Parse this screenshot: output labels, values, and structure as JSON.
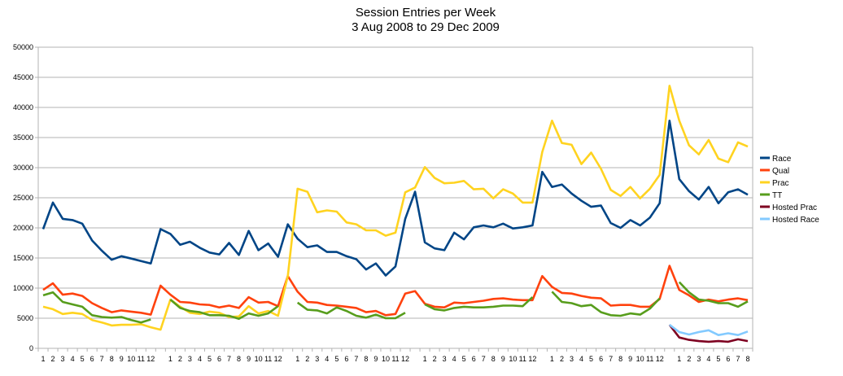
{
  "chart_data": {
    "type": "line",
    "title": "Session Entries per Week",
    "subtitle": "3 Aug 2008 to 29 Dec 2009",
    "xlabel": "",
    "ylabel": "",
    "ylim": [
      0,
      50000
    ],
    "ytick_step": 5000,
    "grid": true,
    "legend_position": "right",
    "categories": [
      "1",
      "2",
      "3",
      "4",
      "5",
      "6",
      "7",
      "8",
      "9",
      "10",
      "11",
      "12",
      "",
      "1",
      "2",
      "3",
      "4",
      "5",
      "6",
      "7",
      "8",
      "9",
      "10",
      "11",
      "12",
      "",
      "1",
      "2",
      "3",
      "4",
      "5",
      "6",
      "7",
      "8",
      "9",
      "10",
      "11",
      "12",
      "",
      "1",
      "2",
      "3",
      "4",
      "5",
      "6",
      "7",
      "8",
      "9",
      "10",
      "11",
      "12",
      "",
      "1",
      "2",
      "3",
      "4",
      "5",
      "6",
      "7",
      "8",
      "9",
      "10",
      "11",
      "12",
      "",
      "1",
      "2",
      "3",
      "4",
      "5",
      "6",
      "7",
      "8"
    ],
    "series": [
      {
        "name": "Race",
        "color": "#004586",
        "values": [
          19800,
          24200,
          21500,
          21300,
          20700,
          17900,
          16200,
          14700,
          15300,
          14900,
          14500,
          14100,
          19800,
          19000,
          17200,
          17700,
          16700,
          15900,
          15600,
          17500,
          15500,
          19500,
          16300,
          17400,
          15200,
          20600,
          18200,
          16800,
          17100,
          16000,
          16000,
          15300,
          14800,
          13100,
          14100,
          12100,
          13600,
          21500,
          26000,
          17600,
          16600,
          16300,
          19200,
          18100,
          20100,
          20400,
          20100,
          20700,
          19900,
          20100,
          20400,
          29300,
          26800,
          27200,
          25700,
          24500,
          23500,
          23700,
          20800,
          20000,
          21300,
          20400,
          21700,
          24100,
          37800,
          28100,
          26100,
          24700,
          26800,
          24100,
          25900,
          26400,
          25500
        ]
      },
      {
        "name": "Qual",
        "color": "#ff420e",
        "values": [
          9700,
          10800,
          8900,
          9100,
          8700,
          7500,
          6700,
          6000,
          6300,
          6100,
          5900,
          5600,
          10400,
          8900,
          7700,
          7600,
          7300,
          7200,
          6800,
          7100,
          6700,
          8500,
          7600,
          7700,
          7000,
          12000,
          9400,
          7700,
          7600,
          7200,
          7100,
          6900,
          6700,
          6000,
          6200,
          5500,
          5700,
          9100,
          9500,
          7400,
          6900,
          6800,
          7600,
          7500,
          7700,
          7900,
          8200,
          8300,
          8100,
          8000,
          8000,
          12000,
          10200,
          9200,
          9100,
          8700,
          8400,
          8300,
          7100,
          7200,
          7200,
          6900,
          6900,
          8200,
          13700,
          9700,
          8800,
          7700,
          8100,
          7800,
          8100,
          8300,
          8000
        ]
      },
      {
        "name": "Prac",
        "color": "#ffd320",
        "values": [
          6900,
          6500,
          5700,
          5900,
          5700,
          4700,
          4300,
          3800,
          3900,
          3900,
          4000,
          3500,
          3100,
          8100,
          6900,
          5900,
          5700,
          6100,
          5900,
          5200,
          5300,
          7000,
          5800,
          6200,
          5400,
          12000,
          26500,
          26000,
          22600,
          22900,
          22700,
          20900,
          20600,
          19600,
          19600,
          18700,
          19200,
          25900,
          26700,
          30100,
          28300,
          27400,
          27500,
          27800,
          26400,
          26500,
          24900,
          26400,
          25700,
          24200,
          24200,
          32600,
          37800,
          34100,
          33800,
          30600,
          32500,
          29800,
          26300,
          25300,
          26800,
          24900,
          26500,
          28800,
          43600,
          37800,
          33700,
          32200,
          34600,
          31500,
          30900,
          34200,
          33500
        ]
      },
      {
        "name": "TT",
        "color": "#579d1c",
        "values": [
          8800,
          9300,
          7700,
          7300,
          6900,
          5500,
          5200,
          5100,
          5200,
          4700,
          4300,
          4800,
          null,
          8100,
          6700,
          6200,
          6000,
          5500,
          5500,
          5400,
          4900,
          5800,
          5400,
          5800,
          7000,
          null,
          7600,
          6400,
          6300,
          5800,
          6800,
          6200,
          5400,
          5100,
          5600,
          5000,
          5000,
          5900,
          null,
          7300,
          6500,
          6300,
          6700,
          6900,
          6800,
          6800,
          6900,
          7100,
          7100,
          7000,
          8500,
          null,
          9400,
          7700,
          7500,
          7000,
          7200,
          6000,
          5500,
          5400,
          5800,
          5600,
          6600,
          8300,
          null,
          11000,
          9300,
          8100,
          7900,
          7500,
          7500,
          6900,
          7800
        ]
      },
      {
        "name": "Hosted Prac",
        "color": "#7e0021",
        "values": [
          null,
          null,
          null,
          null,
          null,
          null,
          null,
          null,
          null,
          null,
          null,
          null,
          null,
          null,
          null,
          null,
          null,
          null,
          null,
          null,
          null,
          null,
          null,
          null,
          null,
          null,
          null,
          null,
          null,
          null,
          null,
          null,
          null,
          null,
          null,
          null,
          null,
          null,
          null,
          null,
          null,
          null,
          null,
          null,
          null,
          null,
          null,
          null,
          null,
          null,
          null,
          null,
          null,
          null,
          null,
          null,
          null,
          null,
          null,
          null,
          null,
          null,
          null,
          null,
          3900,
          1800,
          1400,
          1200,
          1100,
          1200,
          1100,
          1500,
          1200
        ]
      },
      {
        "name": "Hosted Race",
        "color": "#83caff",
        "values": [
          null,
          null,
          null,
          null,
          null,
          null,
          null,
          null,
          null,
          null,
          null,
          null,
          null,
          null,
          null,
          null,
          null,
          null,
          null,
          null,
          null,
          null,
          null,
          null,
          null,
          null,
          null,
          null,
          null,
          null,
          null,
          null,
          null,
          null,
          null,
          null,
          null,
          null,
          null,
          null,
          null,
          null,
          null,
          null,
          null,
          null,
          null,
          null,
          null,
          null,
          null,
          null,
          null,
          null,
          null,
          null,
          null,
          null,
          null,
          null,
          null,
          null,
          null,
          null,
          3900,
          2700,
          2300,
          2700,
          3000,
          2200,
          2500,
          2200,
          2800
        ]
      }
    ]
  }
}
